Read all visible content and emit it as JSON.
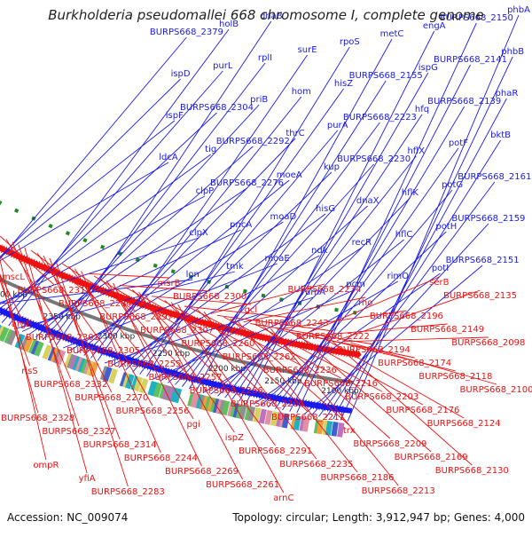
{
  "title": "Burkholderia pseudomallei 668 chromosome I, complete genome",
  "accession": "Accession: NC_009074",
  "summary": "Topology: circular; Length: 3,912,947 bp; Genes: 4,000",
  "colors": {
    "forward": "#1a1aee",
    "reverse": "#ee1111",
    "backbone": "#777777",
    "gc_mark": "#1f8a1f"
  },
  "kbp_labels": [
    {
      "text": "2450 kbp",
      "kbp": 2450
    },
    {
      "text": "2400 kbp",
      "kbp": 2400
    },
    {
      "text": "2350 kbp",
      "kbp": 2350
    },
    {
      "text": "2300 kbp",
      "kbp": 2300
    },
    {
      "text": "2250 kbp",
      "kbp": 2250
    },
    {
      "text": "2200 kbp",
      "kbp": 2200
    },
    {
      "text": "2150 kbp",
      "kbp": 2150
    },
    {
      "text": "2100 kbp",
      "kbp": 2100
    }
  ],
  "forward_genes": [
    "phbA",
    "phbB",
    "phaR",
    "bktB",
    "BURPS668_2161",
    "BURPS668_2159",
    "BURPS668_2151",
    "BURPS668_2150",
    "BURPS668_2141",
    "BURPS668_2139",
    "potF",
    "potG",
    "potH",
    "potI",
    "engA",
    "ispG",
    "hfq",
    "hflX",
    "hflK",
    "hflC",
    "rimO",
    "metC",
    "BURPS668_2155",
    "BURPS668_2223",
    "BURPS668_2230",
    "dnaX",
    "recR",
    "pcm",
    "rpoS",
    "hisZ",
    "purA",
    "kup",
    "hisG",
    "ndk",
    "rumA",
    "surE",
    "hom",
    "thrC",
    "moeA",
    "moaD",
    "moaE",
    "dnaB",
    "rplI",
    "priB",
    "BURPS668_2292",
    "BURPS668_2276",
    "pncA",
    "tmk",
    "holB",
    "purL",
    "BURPS668_2304",
    "tig",
    "clpP",
    "clpX",
    "lon",
    "BURPS668_2379",
    "ispD",
    "ispF",
    "ldcA"
  ],
  "reverse_genes": [
    "mscL",
    "argE",
    "risS",
    "BURPS668_2328",
    "ompR",
    "BURPS668_2311",
    "BURPS668_2301",
    "BURPS668_2332",
    "BURPS668_2327",
    "yfiA",
    "BURPS668_2284",
    "BURPS668_2305",
    "BURPS668_2270",
    "BURPS668_2314",
    "BURPS668_2283",
    "BURPS668_2297",
    "BURPS668_2255",
    "BURPS668_2256",
    "BURPS668_2244",
    "msrB",
    "BURPS668_2307",
    "BURPS668_2257",
    "pgi",
    "BURPS668_2269",
    "BURPS668_2300",
    "BURPS668_2260",
    "BURPS668_2266",
    "ispZ",
    "BURPS668_2261",
    "gcl",
    "BURPS668_2262",
    "BURPS668_2264",
    "BURPS668_2291",
    "arnC",
    "BURPS668_2243",
    "BURPS668_2236",
    "BURPS668_2211",
    "BURPS668_2235",
    "BURPS668_2234",
    "BURPS668_2222",
    "BURPS668_2216",
    "trx",
    "BURPS668_2186",
    "rho",
    "BURPS668_2194",
    "BURPS668_2203",
    "BURPS668_2209",
    "BURPS668_2213",
    "BURPS668_2196",
    "BURPS668_2174",
    "BURPS668_2176",
    "BURPS668_2169",
    "serB",
    "BURPS668_2149",
    "BURPS668_2118",
    "BURPS668_2124",
    "BURPS668_2130",
    "BURPS668_2135",
    "BURPS668_2098",
    "BURPS668_2100"
  ]
}
